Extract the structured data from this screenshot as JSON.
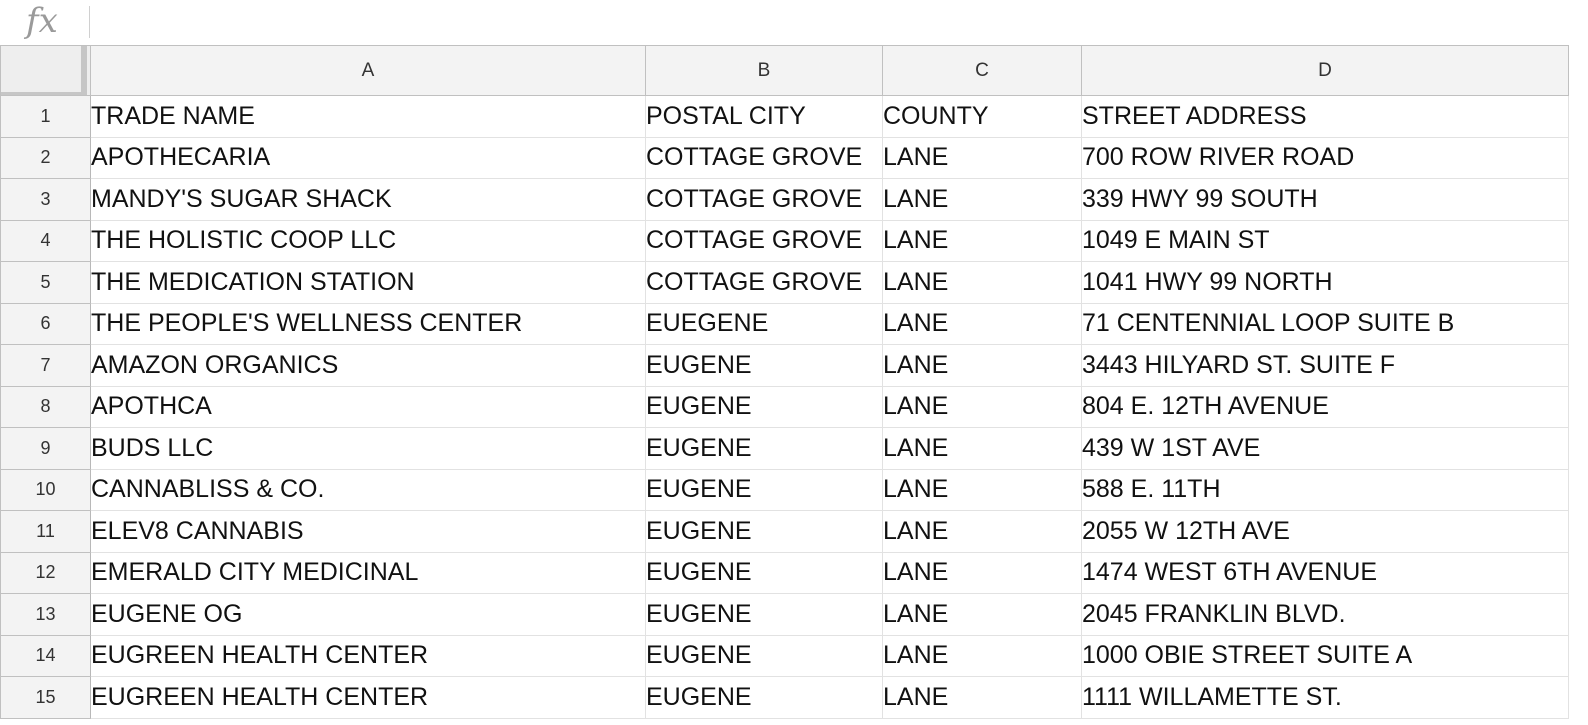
{
  "formula_bar": {
    "icon": "fx-icon",
    "icon_label": "fx",
    "value": ""
  },
  "columns": [
    "A",
    "B",
    "C",
    "D"
  ],
  "rows": [
    {
      "num": "1",
      "cells": [
        "TRADE NAME",
        "POSTAL CITY",
        "COUNTY",
        "STREET ADDRESS"
      ]
    },
    {
      "num": "2",
      "cells": [
        "APOTHECARIA",
        "COTTAGE GROVE",
        "LANE",
        "700 ROW RIVER ROAD"
      ]
    },
    {
      "num": "3",
      "cells": [
        "MANDY'S SUGAR SHACK",
        "COTTAGE GROVE",
        "LANE",
        "339 HWY 99 SOUTH"
      ]
    },
    {
      "num": "4",
      "cells": [
        "THE HOLISTIC COOP LLC",
        "COTTAGE GROVE",
        "LANE",
        "1049 E MAIN ST"
      ]
    },
    {
      "num": "5",
      "cells": [
        "THE MEDICATION STATION",
        "COTTAGE GROVE",
        "LANE",
        "1041 HWY 99 NORTH"
      ]
    },
    {
      "num": "6",
      "cells": [
        "THE PEOPLE'S WELLNESS CENTER",
        "EUEGENE",
        "LANE",
        "71 CENTENNIAL LOOP SUITE B"
      ]
    },
    {
      "num": "7",
      "cells": [
        "AMAZON ORGANICS",
        "EUGENE",
        "LANE",
        "3443 HILYARD ST.  SUITE F"
      ]
    },
    {
      "num": "8",
      "cells": [
        "APOTHCA",
        "EUGENE",
        "LANE",
        "804 E. 12TH AVENUE"
      ]
    },
    {
      "num": "9",
      "cells": [
        "BUDS LLC",
        "EUGENE",
        "LANE",
        "439 W 1ST AVE"
      ]
    },
    {
      "num": "10",
      "cells": [
        "CANNABLISS & CO.",
        "EUGENE",
        "LANE",
        "588 E. 11TH"
      ]
    },
    {
      "num": "11",
      "cells": [
        "ELEV8 CANNABIS",
        "EUGENE",
        "LANE",
        "2055 W 12TH AVE"
      ]
    },
    {
      "num": "12",
      "cells": [
        "EMERALD CITY MEDICINAL",
        "EUGENE",
        "LANE",
        "1474 WEST 6TH AVENUE"
      ]
    },
    {
      "num": "13",
      "cells": [
        "EUGENE OG",
        "EUGENE",
        "LANE",
        "2045 FRANKLIN BLVD."
      ]
    },
    {
      "num": "14",
      "cells": [
        "EUGREEN HEALTH CENTER",
        "EUGENE",
        "LANE",
        "1000 OBIE STREET SUITE A"
      ]
    },
    {
      "num": "15",
      "cells": [
        "EUGREEN HEALTH CENTER",
        "EUGENE",
        "LANE",
        "1111 WILLAMETTE ST."
      ]
    }
  ],
  "colors": {
    "header_bg": "#f3f3f3",
    "gridline": "#e2e2e2",
    "header_border": "#c0c0c0",
    "fx_icon": "#9a9a9a"
  }
}
